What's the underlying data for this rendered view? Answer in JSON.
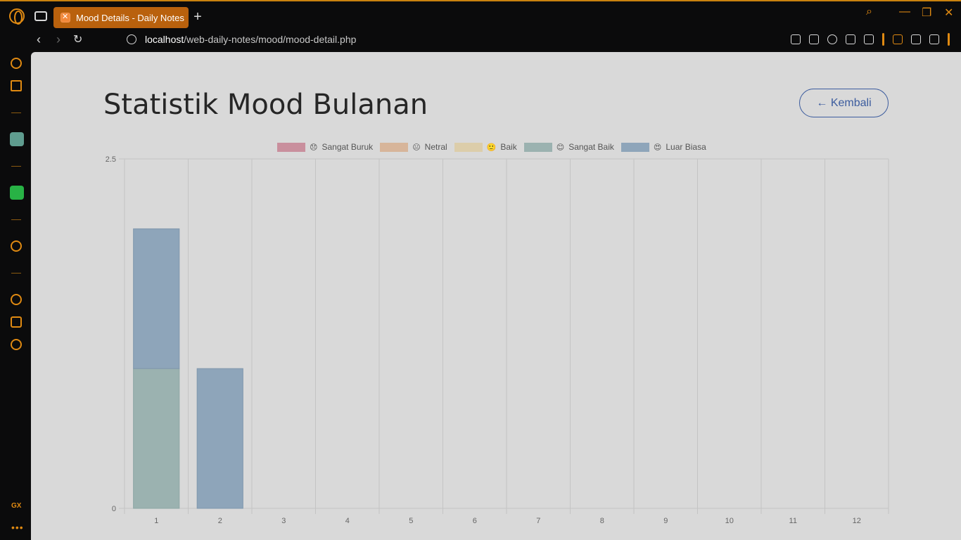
{
  "browser": {
    "tab_title": "Mood Details - Daily Notes",
    "url_host": "localhost",
    "url_path": "/web-daily-notes/mood/mood-detail.php",
    "sidebar_badge": "GX",
    "sidebar_more": "•••"
  },
  "page": {
    "title": "Statistik Mood Bulanan",
    "back_label": "← Kembali"
  },
  "chart_data": {
    "type": "bar",
    "stacked": true,
    "categories": [
      "1",
      "2",
      "3",
      "4",
      "5",
      "6",
      "7",
      "8",
      "9",
      "10",
      "11",
      "12"
    ],
    "series": [
      {
        "name": "Sangat Buruk",
        "emoji": "😞",
        "color": "#c98f9d",
        "values": [
          0,
          0,
          0,
          0,
          0,
          0,
          0,
          0,
          0,
          0,
          0,
          0
        ]
      },
      {
        "name": "Netral",
        "emoji": "😐",
        "color": "#d7b59a",
        "values": [
          0,
          0,
          0,
          0,
          0,
          0,
          0,
          0,
          0,
          0,
          0,
          0
        ]
      },
      {
        "name": "Baik",
        "emoji": "🙂",
        "color": "#dccdaa",
        "values": [
          0,
          0,
          0,
          0,
          0,
          0,
          0,
          0,
          0,
          0,
          0,
          0
        ]
      },
      {
        "name": "Sangat Baik",
        "emoji": "😊",
        "color": "#9bb2b0",
        "values": [
          1,
          0,
          0,
          0,
          0,
          0,
          0,
          0,
          0,
          0,
          0,
          0
        ]
      },
      {
        "name": "Luar Biasa",
        "emoji": "😍",
        "color": "#8ea5ba",
        "values": [
          1,
          1,
          0,
          0,
          0,
          0,
          0,
          0,
          0,
          0,
          0,
          0
        ]
      }
    ],
    "yticks": [
      "0",
      "2.5"
    ],
    "ylim": [
      0,
      2.5
    ],
    "grid": true,
    "legend_position": "top"
  }
}
